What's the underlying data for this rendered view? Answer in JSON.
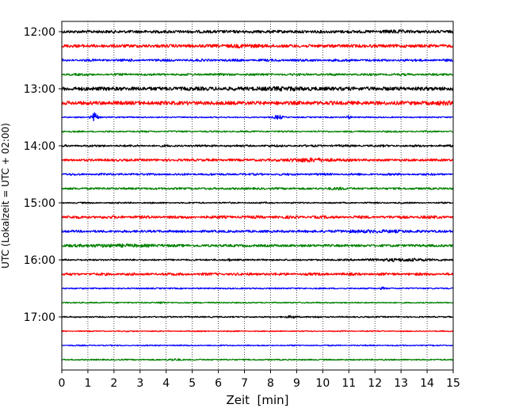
{
  "chart_data": {
    "type": "line",
    "title": "",
    "xlabel": "Zeit  [min]",
    "ylabel": "UTC (Lokalzeit = UTC + 02:00)",
    "xlim": [
      0,
      15
    ],
    "x_ticks": [
      "0",
      "1",
      "2",
      "3",
      "4",
      "5",
      "6",
      "7",
      "8",
      "9",
      "10",
      "11",
      "12",
      "13",
      "14",
      "15"
    ],
    "y_ticks": [
      "12:00",
      "13:00",
      "14:00",
      "15:00",
      "16:00",
      "17:00"
    ],
    "grid": "vertical dotted",
    "trace_interval_min": 15,
    "colors": [
      "#000000",
      "#ff0000",
      "#0000ff",
      "#008000"
    ],
    "traces": [
      {
        "start": "12:00",
        "color": "#000000",
        "amp": 3.5,
        "events": [
          {
            "t": 12.8,
            "a": 1.4,
            "w": 0.4
          }
        ]
      },
      {
        "start": "12:15",
        "color": "#ff0000",
        "amp": 3.8,
        "events": [
          {
            "t": 7.0,
            "a": 1.5,
            "w": 0.6
          }
        ]
      },
      {
        "start": "12:30",
        "color": "#0000ff",
        "amp": 3.2,
        "events": []
      },
      {
        "start": "12:45",
        "color": "#008000",
        "amp": 3.0,
        "events": []
      },
      {
        "start": "13:00",
        "color": "#000000",
        "amp": 4.5,
        "events": [
          {
            "t": 8.6,
            "a": 1.4,
            "w": 0.8
          }
        ]
      },
      {
        "start": "13:15",
        "color": "#ff0000",
        "amp": 4.5,
        "events": [
          {
            "t": 14.6,
            "a": 1.6,
            "w": 0.3
          }
        ]
      },
      {
        "start": "13:30",
        "color": "#0000ff",
        "amp": 1.5,
        "events": [
          {
            "t": 1.25,
            "a": 10.5,
            "w": 0.12
          },
          {
            "t": 8.3,
            "a": 4.5,
            "w": 0.18
          },
          {
            "t": 11.0,
            "a": 3.5,
            "w": 0.08
          }
        ]
      },
      {
        "start": "13:45",
        "color": "#008000",
        "amp": 2.2,
        "events": []
      },
      {
        "start": "14:00",
        "color": "#000000",
        "amp": 2.8,
        "events": []
      },
      {
        "start": "14:15",
        "color": "#ff0000",
        "amp": 2.8,
        "events": [
          {
            "t": 9.5,
            "a": 3.0,
            "w": 0.9
          }
        ]
      },
      {
        "start": "14:30",
        "color": "#0000ff",
        "amp": 2.8,
        "events": []
      },
      {
        "start": "14:45",
        "color": "#008000",
        "amp": 2.5,
        "events": [
          {
            "t": 10.6,
            "a": 1.6,
            "w": 0.3
          }
        ]
      },
      {
        "start": "15:00",
        "color": "#000000",
        "amp": 2.0,
        "events": []
      },
      {
        "start": "15:15",
        "color": "#ff0000",
        "amp": 3.8,
        "events": []
      },
      {
        "start": "15:30",
        "color": "#0000ff",
        "amp": 2.8,
        "events": [
          {
            "t": 12.0,
            "a": 1.5,
            "w": 1.5
          }
        ]
      },
      {
        "start": "15:45",
        "color": "#008000",
        "amp": 3.0,
        "events": [
          {
            "t": 2.0,
            "a": 1.4,
            "w": 1.8
          }
        ]
      },
      {
        "start": "16:00",
        "color": "#000000",
        "amp": 2.0,
        "events": [
          {
            "t": 6.4,
            "a": 2.0,
            "w": 0.08
          },
          {
            "t": 13.0,
            "a": 2.3,
            "w": 1.3
          }
        ]
      },
      {
        "start": "16:15",
        "color": "#ff0000",
        "amp": 3.5,
        "events": []
      },
      {
        "start": "16:30",
        "color": "#0000ff",
        "amp": 1.6,
        "events": [
          {
            "t": 12.3,
            "a": 2.2,
            "w": 0.1
          }
        ]
      },
      {
        "start": "16:45",
        "color": "#008000",
        "amp": 1.5,
        "events": [
          {
            "t": 3.8,
            "a": 2.0,
            "w": 0.15
          }
        ]
      },
      {
        "start": "17:00",
        "color": "#000000",
        "amp": 1.6,
        "events": [
          {
            "t": 8.8,
            "a": 2.4,
            "w": 0.2
          },
          {
            "t": 9.8,
            "a": 1.8,
            "w": 0.1
          }
        ]
      },
      {
        "start": "17:15",
        "color": "#ff0000",
        "amp": 1.5,
        "events": []
      },
      {
        "start": "17:30",
        "color": "#0000ff",
        "amp": 1.6,
        "events": []
      },
      {
        "start": "17:45",
        "color": "#008000",
        "amp": 1.6,
        "events": [
          {
            "t": 4.3,
            "a": 1.6,
            "w": 0.25
          }
        ]
      }
    ]
  }
}
